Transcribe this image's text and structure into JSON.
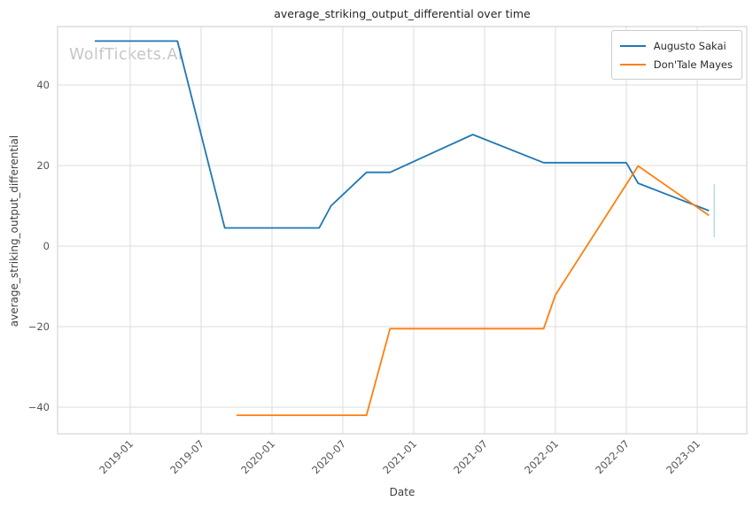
{
  "watermark": "WolfTickets.AI",
  "chart_data": {
    "type": "line",
    "title": "average_striking_output_differential over time",
    "xlabel": "Date",
    "ylabel": "average_striking_output_differential",
    "grid": true,
    "legend_position": "upper right",
    "x_tick_labels": [
      "2019-01",
      "2019-07",
      "2020-01",
      "2020-07",
      "2021-01",
      "2021-07",
      "2022-01",
      "2022-07",
      "2023-01"
    ],
    "y_ticks": [
      {
        "value": 40,
        "label": "40"
      },
      {
        "value": 20,
        "label": "20"
      },
      {
        "value": 0,
        "label": "0"
      },
      {
        "value": -20,
        "label": "−20"
      },
      {
        "value": -40,
        "label": "−40"
      }
    ],
    "xlim": [
      "2018-07",
      "2023-05"
    ],
    "ylim": [
      -46.5,
      54.5
    ],
    "series": [
      {
        "name": "Augusto Sakai",
        "color": "#1f77b4",
        "points": [
          [
            "2018-10",
            50.9
          ],
          [
            "2019-05",
            50.9
          ],
          [
            "2019-09",
            4.5
          ],
          [
            "2020-05",
            4.5
          ],
          [
            "2020-06",
            10.0
          ],
          [
            "2020-09",
            18.3
          ],
          [
            "2020-11",
            18.3
          ],
          [
            "2021-06",
            27.7
          ],
          [
            "2021-12",
            20.7
          ],
          [
            "2022-07",
            20.7
          ],
          [
            "2022-08",
            15.6
          ],
          [
            "2023-02",
            8.8
          ]
        ]
      },
      {
        "name": "Don'Tale Mayes",
        "color": "#ff7f0e",
        "points": [
          [
            "2019-10",
            -42.0
          ],
          [
            "2020-09",
            -42.0
          ],
          [
            "2020-11",
            -20.5
          ],
          [
            "2021-12",
            -20.5
          ],
          [
            "2022-01",
            -12.1
          ],
          [
            "2022-08",
            19.9
          ],
          [
            "2023-02",
            7.6
          ]
        ]
      }
    ],
    "error_bar": {
      "x": "2023-02",
      "y_low": 2.2,
      "y_high": 15.4,
      "color": "#bcd9ec"
    }
  },
  "style": {
    "grid_color": "#dcdcdc",
    "spine_color": "#d4d4d4",
    "tick_label_color": "#555555",
    "line_width": 1.8
  }
}
